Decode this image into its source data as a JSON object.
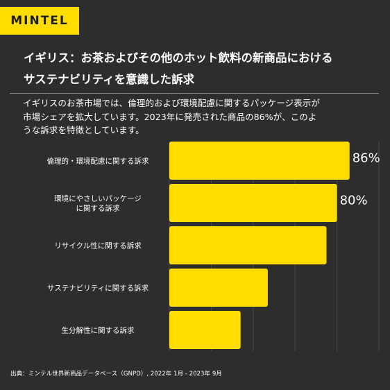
{
  "brand": {
    "logo_text": "MINTEL"
  },
  "header": {
    "title_line1": "イギリス：お茶およびその他のホット飲料の新商品における",
    "title_line2": "サステナビリティを意識した訴求"
  },
  "description": {
    "line1": "イギリスのお茶市場では、倫理的および環境配慮に関するパッケージ表示が",
    "line2": "市場シェアを拡大しています。2023年に発売された商品の86%が、このよ",
    "line3": "うな訴求を特徴としています。"
  },
  "footer": {
    "source": "出典：ミンテル世界新商品データベース（GNPD）, 2022年 1月 - 2023年 9月"
  },
  "colors": {
    "bar": "#ffdd00",
    "background": "#2d2d2d",
    "grid": "#4a4a4a"
  },
  "chart_data": {
    "type": "bar",
    "orientation": "horizontal",
    "categories": [
      [
        "倫理的・環境配慮に関する訴求"
      ],
      [
        "環境にやさしいパッケージ",
        "に関する訴求"
      ],
      [
        "リサイクル性に関する訴求"
      ],
      [
        "サステナビリティに関する訴求"
      ],
      [
        "生分解性に関する訴求"
      ]
    ],
    "values": [
      86,
      80,
      75,
      47,
      34
    ],
    "value_labels": [
      "86%",
      "80%",
      "",
      "",
      ""
    ],
    "xlim": [
      0,
      100
    ],
    "unit": "%",
    "grid": true
  }
}
